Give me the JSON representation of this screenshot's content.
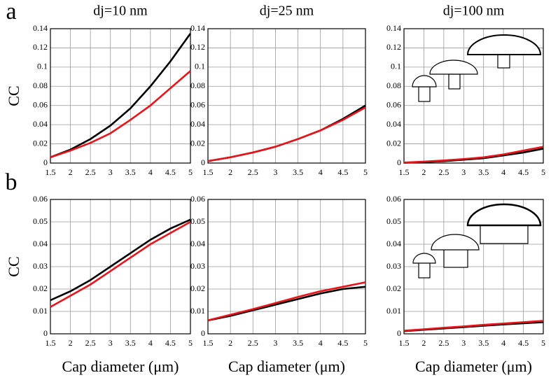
{
  "chart_data": [
    {
      "type": "line",
      "panel_label": "a",
      "title": "dj=10 nm",
      "ylabel": "CC",
      "x": [
        1.5,
        2,
        2.5,
        3,
        3.5,
        4,
        4.5,
        5
      ],
      "series": [
        {
          "color": "#000000",
          "values": [
            0.006,
            0.014,
            0.025,
            0.039,
            0.057,
            0.08,
            0.106,
            0.135
          ]
        },
        {
          "color": "#e8141a",
          "values": [
            0.006,
            0.013,
            0.021,
            0.031,
            0.045,
            0.06,
            0.078,
            0.096
          ]
        }
      ],
      "xlim": [
        1.5,
        5
      ],
      "xticks": [
        1.5,
        2,
        2.5,
        3,
        3.5,
        4,
        4.5,
        5
      ],
      "ylim": [
        0,
        0.14
      ],
      "yticks": [
        0,
        0.02,
        0.04,
        0.06,
        0.08,
        0.1,
        0.12,
        0.14
      ],
      "grid": true
    },
    {
      "type": "line",
      "title": "dj=25 nm",
      "x": [
        1.5,
        2,
        2.5,
        3,
        3.5,
        4,
        4.5,
        5
      ],
      "series": [
        {
          "color": "#000000",
          "values": [
            0.002,
            0.006,
            0.011,
            0.017,
            0.025,
            0.034,
            0.046,
            0.06
          ]
        },
        {
          "color": "#e8141a",
          "values": [
            0.002,
            0.006,
            0.011,
            0.017,
            0.025,
            0.034,
            0.045,
            0.058
          ]
        }
      ],
      "xlim": [
        1.5,
        5
      ],
      "xticks": [
        1.5,
        2,
        2.5,
        3,
        3.5,
        4,
        4.5,
        5
      ],
      "ylim": [
        0,
        0.14
      ],
      "yticks": [
        0,
        0.02,
        0.04,
        0.06,
        0.08,
        0.1,
        0.12,
        0.14
      ],
      "grid": true
    },
    {
      "type": "line",
      "title": "dj=100 nm",
      "x": [
        1.5,
        2,
        2.5,
        3,
        3.5,
        4,
        4.5,
        5
      ],
      "series": [
        {
          "color": "#000000",
          "values": [
            0.0003,
            0.001,
            0.002,
            0.0035,
            0.005,
            0.008,
            0.011,
            0.015
          ]
        },
        {
          "color": "#e8141a",
          "values": [
            0.0005,
            0.0015,
            0.0027,
            0.0042,
            0.006,
            0.009,
            0.013,
            0.017
          ]
        }
      ],
      "xlim": [
        1.5,
        5
      ],
      "xticks": [
        1.5,
        2,
        2.5,
        3,
        3.5,
        4,
        4.5,
        5
      ],
      "ylim": [
        0,
        0.14
      ],
      "yticks": [
        0,
        0.02,
        0.04,
        0.06,
        0.08,
        0.1,
        0.12,
        0.14
      ],
      "grid": true
    },
    {
      "type": "line",
      "panel_label": "b",
      "ylabel": "CC",
      "xlabel": "Cap diameter (μm)",
      "x": [
        1.5,
        2,
        2.5,
        3,
        3.5,
        4,
        4.5,
        5
      ],
      "series": [
        {
          "color": "#000000",
          "values": [
            0.015,
            0.019,
            0.024,
            0.03,
            0.036,
            0.042,
            0.047,
            0.051
          ]
        },
        {
          "color": "#e8141a",
          "values": [
            0.012,
            0.017,
            0.022,
            0.028,
            0.034,
            0.04,
            0.045,
            0.05
          ]
        }
      ],
      "xlim": [
        1.5,
        5
      ],
      "xticks": [
        1.5,
        2,
        2.5,
        3,
        3.5,
        4,
        4.5,
        5
      ],
      "ylim": [
        0,
        0.06
      ],
      "yticks": [
        0,
        0.01,
        0.02,
        0.03,
        0.04,
        0.05,
        0.06
      ],
      "grid": true
    },
    {
      "type": "line",
      "xlabel": "Cap diameter (μm)",
      "x": [
        1.5,
        2,
        2.5,
        3,
        3.5,
        4,
        4.5,
        5
      ],
      "series": [
        {
          "color": "#000000",
          "values": [
            0.006,
            0.008,
            0.0105,
            0.013,
            0.0155,
            0.018,
            0.02,
            0.021
          ]
        },
        {
          "color": "#e8141a",
          "values": [
            0.006,
            0.0085,
            0.011,
            0.0137,
            0.0165,
            0.019,
            0.021,
            0.023
          ]
        }
      ],
      "xlim": [
        1.5,
        5
      ],
      "xticks": [
        1.5,
        2,
        2.5,
        3,
        3.5,
        4,
        4.5,
        5
      ],
      "ylim": [
        0,
        0.06
      ],
      "yticks": [
        0,
        0.01,
        0.02,
        0.03,
        0.04,
        0.05,
        0.06
      ],
      "grid": true
    },
    {
      "type": "line",
      "xlabel": "Cap diameter (μm)",
      "x": [
        1.5,
        2,
        2.5,
        3,
        3.5,
        4,
        4.5,
        5
      ],
      "series": [
        {
          "color": "#000000",
          "values": [
            0.0012,
            0.0018,
            0.0024,
            0.003,
            0.0036,
            0.0042,
            0.0047,
            0.0052
          ]
        },
        {
          "color": "#e8141a",
          "values": [
            0.0014,
            0.002,
            0.0027,
            0.0033,
            0.004,
            0.0046,
            0.0052,
            0.0058
          ]
        }
      ],
      "xlim": [
        1.5,
        5
      ],
      "xticks": [
        1.5,
        2,
        2.5,
        3,
        3.5,
        4,
        4.5,
        5
      ],
      "ylim": [
        0,
        0.06
      ],
      "yticks": [
        0,
        0.01,
        0.02,
        0.03,
        0.04,
        0.05,
        0.06
      ],
      "grid": true
    }
  ]
}
